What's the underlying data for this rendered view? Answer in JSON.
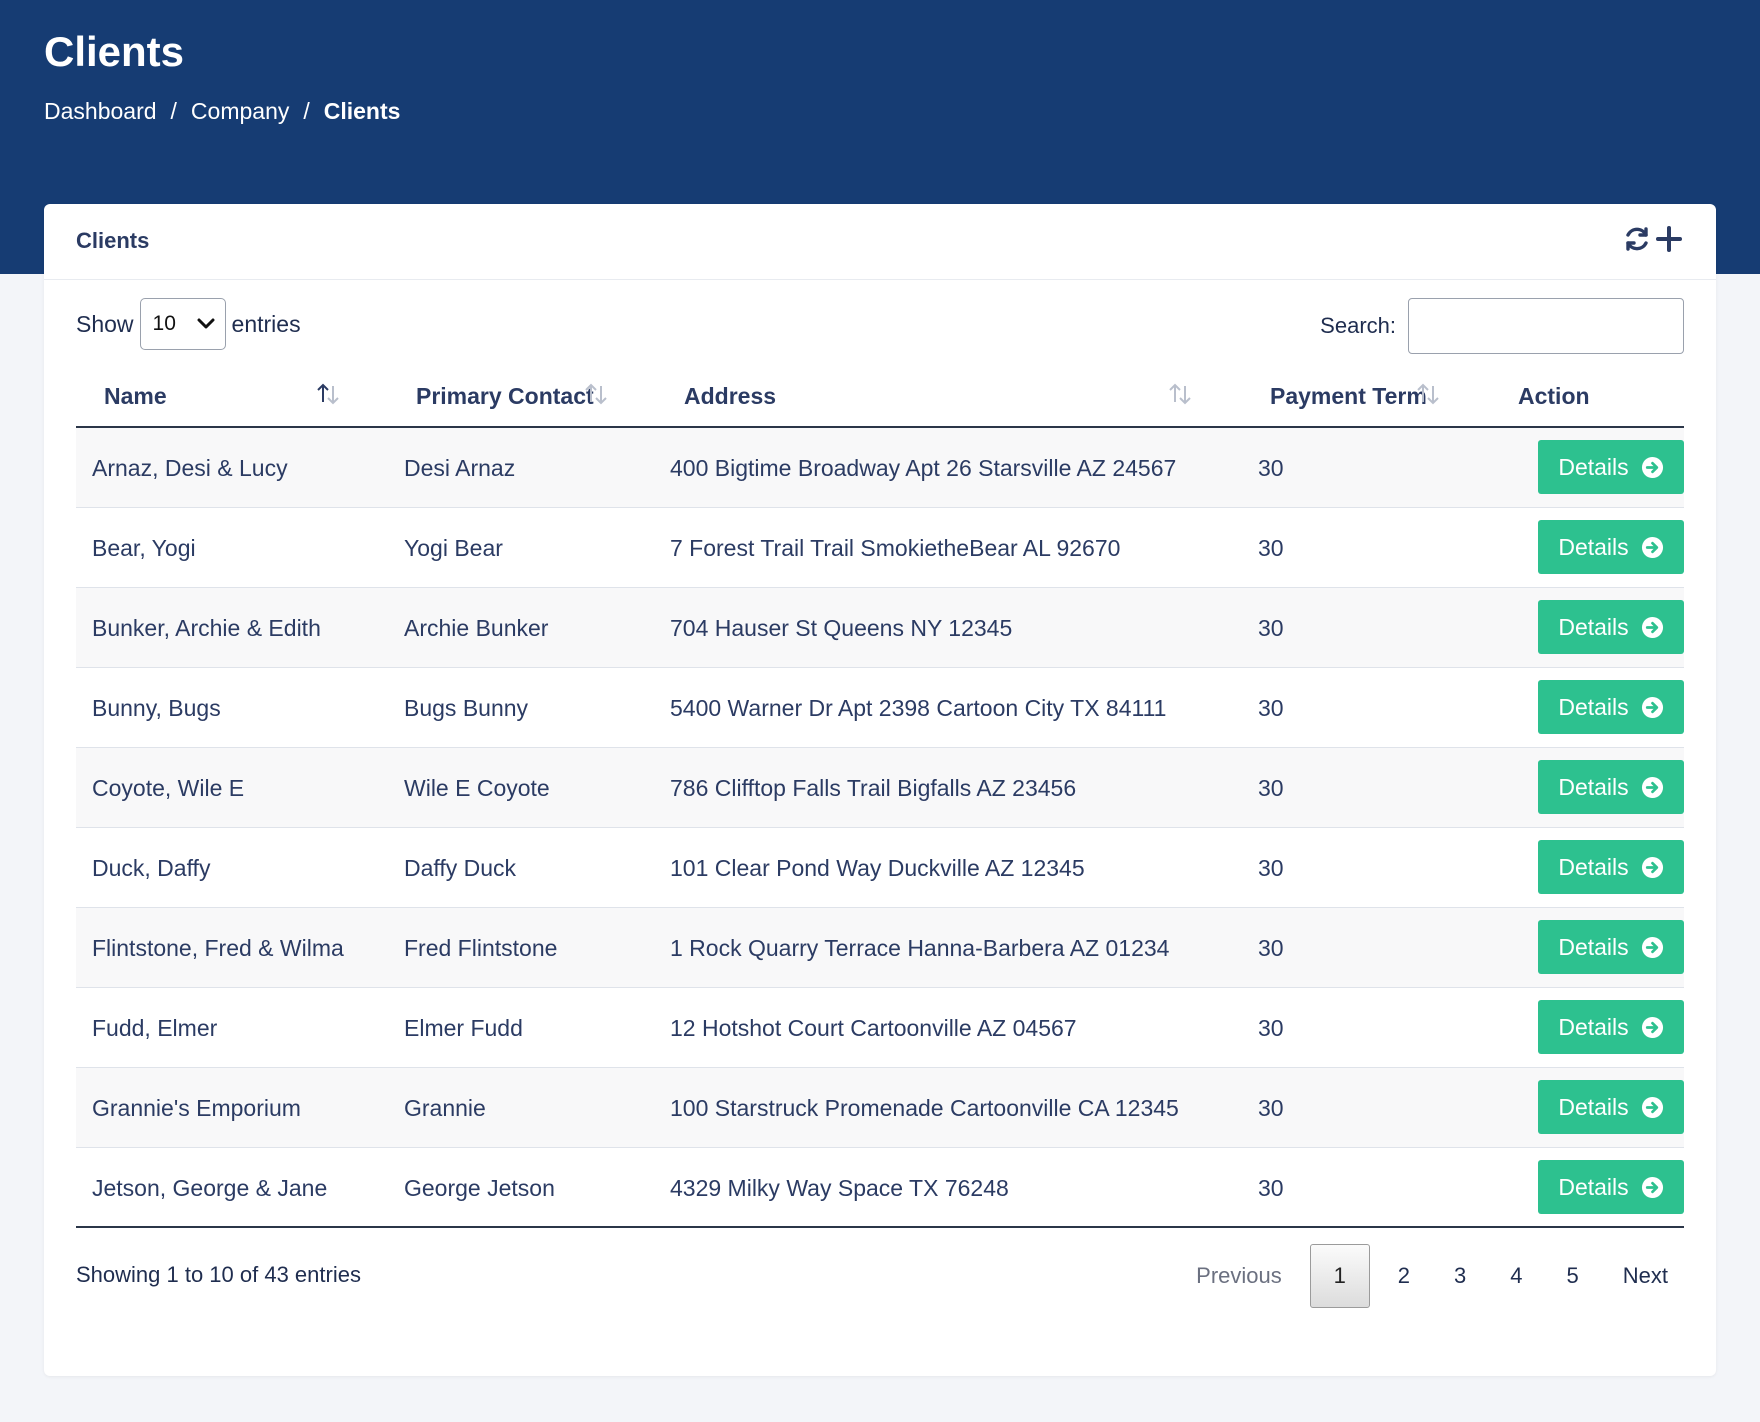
{
  "header": {
    "title": "Clients",
    "breadcrumb": [
      {
        "label": "Dashboard"
      },
      {
        "label": "Company"
      },
      {
        "label": "Clients"
      }
    ],
    "separator": "/"
  },
  "card": {
    "title": "Clients",
    "icons": [
      "refresh-icon",
      "add-icon"
    ]
  },
  "controls": {
    "show_label": "Show",
    "entries_value": "10",
    "entries_label": "entries",
    "search_label": "Search:",
    "search_value": ""
  },
  "table": {
    "columns": [
      "Name",
      "Primary Contact",
      "Address",
      "Payment Term",
      "Action"
    ],
    "rows": [
      {
        "name": "Arnaz, Desi & Lucy",
        "contact": "Desi Arnaz",
        "address": "400 Bigtime Broadway Apt 26 Starsville AZ 24567",
        "term": "30"
      },
      {
        "name": "Bear, Yogi",
        "contact": "Yogi Bear",
        "address": "7 Forest Trail Trail SmokietheBear AL 92670",
        "term": "30"
      },
      {
        "name": "Bunker, Archie & Edith",
        "contact": "Archie Bunker",
        "address": "704 Hauser St Queens NY 12345",
        "term": "30"
      },
      {
        "name": "Bunny, Bugs",
        "contact": "Bugs Bunny",
        "address": "5400 Warner Dr Apt 2398 Cartoon City TX 84111",
        "term": "30"
      },
      {
        "name": "Coyote, Wile E",
        "contact": "Wile E Coyote",
        "address": "786 Clifftop Falls Trail Bigfalls AZ 23456",
        "term": "30"
      },
      {
        "name": "Duck, Daffy",
        "contact": "Daffy Duck",
        "address": "101 Clear Pond Way Duckville AZ 12345",
        "term": "30"
      },
      {
        "name": "Flintstone, Fred & Wilma",
        "contact": "Fred Flintstone",
        "address": "1 Rock Quarry Terrace Hanna-Barbera AZ 01234",
        "term": "30"
      },
      {
        "name": "Fudd, Elmer",
        "contact": "Elmer Fudd",
        "address": "12 Hotshot Court Cartoonville AZ 04567",
        "term": "30"
      },
      {
        "name": "Grannie's Emporium",
        "contact": "Grannie",
        "address": "100 Starstruck Promenade Cartoonville CA 12345",
        "term": "30"
      },
      {
        "name": "Jetson, George & Jane",
        "contact": "George Jetson",
        "address": "4329 Milky Way Space TX 76248",
        "term": "30"
      }
    ],
    "details_label": "Details"
  },
  "footer": {
    "info": "Showing 1 to 10 of 43 entries",
    "previous": "Previous",
    "pages": [
      "1",
      "2",
      "3",
      "4",
      "5"
    ],
    "current_page": "1",
    "next": "Next"
  },
  "colors": {
    "header_bg": "#163c73",
    "details_button": "#2dc18f",
    "text": "#2b3b63"
  }
}
